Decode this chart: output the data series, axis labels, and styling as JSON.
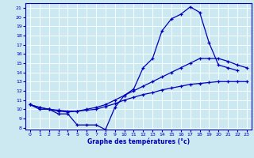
{
  "bg_color": "#cce8f0",
  "line_color": "#0000bb",
  "xlabel": "Graphe des températures (°c)",
  "ylim": [
    7.8,
    21.5
  ],
  "xlim": [
    -0.5,
    23.5
  ],
  "yticks": [
    8,
    9,
    10,
    11,
    12,
    13,
    14,
    15,
    16,
    17,
    18,
    19,
    20,
    21
  ],
  "xticks": [
    0,
    1,
    2,
    3,
    4,
    5,
    6,
    7,
    8,
    9,
    10,
    11,
    12,
    13,
    14,
    15,
    16,
    17,
    18,
    19,
    20,
    21,
    22,
    23
  ],
  "main_x": [
    0,
    1,
    2,
    3,
    4,
    5,
    6,
    7,
    8,
    9,
    10,
    11,
    12,
    13,
    14,
    15,
    16,
    17,
    18,
    19,
    20,
    21,
    22
  ],
  "main_y": [
    10.5,
    10.0,
    10.0,
    9.5,
    9.5,
    8.3,
    8.3,
    8.3,
    7.8,
    10.2,
    11.5,
    12.2,
    14.5,
    15.5,
    18.5,
    19.8,
    20.3,
    21.1,
    20.5,
    17.2,
    14.8,
    14.5,
    14.2
  ],
  "line2_x": [
    0,
    1,
    2,
    3,
    4,
    5,
    6,
    7,
    8,
    9,
    10,
    11,
    12,
    13,
    14,
    15,
    16,
    17,
    18,
    19,
    20,
    21,
    22,
    23
  ],
  "line2_y": [
    10.5,
    10.2,
    10.0,
    9.8,
    9.7,
    9.8,
    10.0,
    10.2,
    10.5,
    11.0,
    11.5,
    12.0,
    12.5,
    13.0,
    13.5,
    14.0,
    14.5,
    15.0,
    15.5,
    15.5,
    15.5,
    15.2,
    14.8,
    14.5
  ],
  "line3_x": [
    0,
    1,
    2,
    3,
    4,
    5,
    6,
    7,
    8,
    9,
    10,
    11,
    12,
    13,
    14,
    15,
    16,
    17,
    18,
    19,
    20,
    21,
    22,
    23
  ],
  "line3_y": [
    10.5,
    10.2,
    10.0,
    9.9,
    9.8,
    9.8,
    9.9,
    10.0,
    10.3,
    10.6,
    11.0,
    11.3,
    11.6,
    11.8,
    12.1,
    12.3,
    12.5,
    12.7,
    12.8,
    12.9,
    13.0,
    13.0,
    13.0,
    13.0
  ]
}
